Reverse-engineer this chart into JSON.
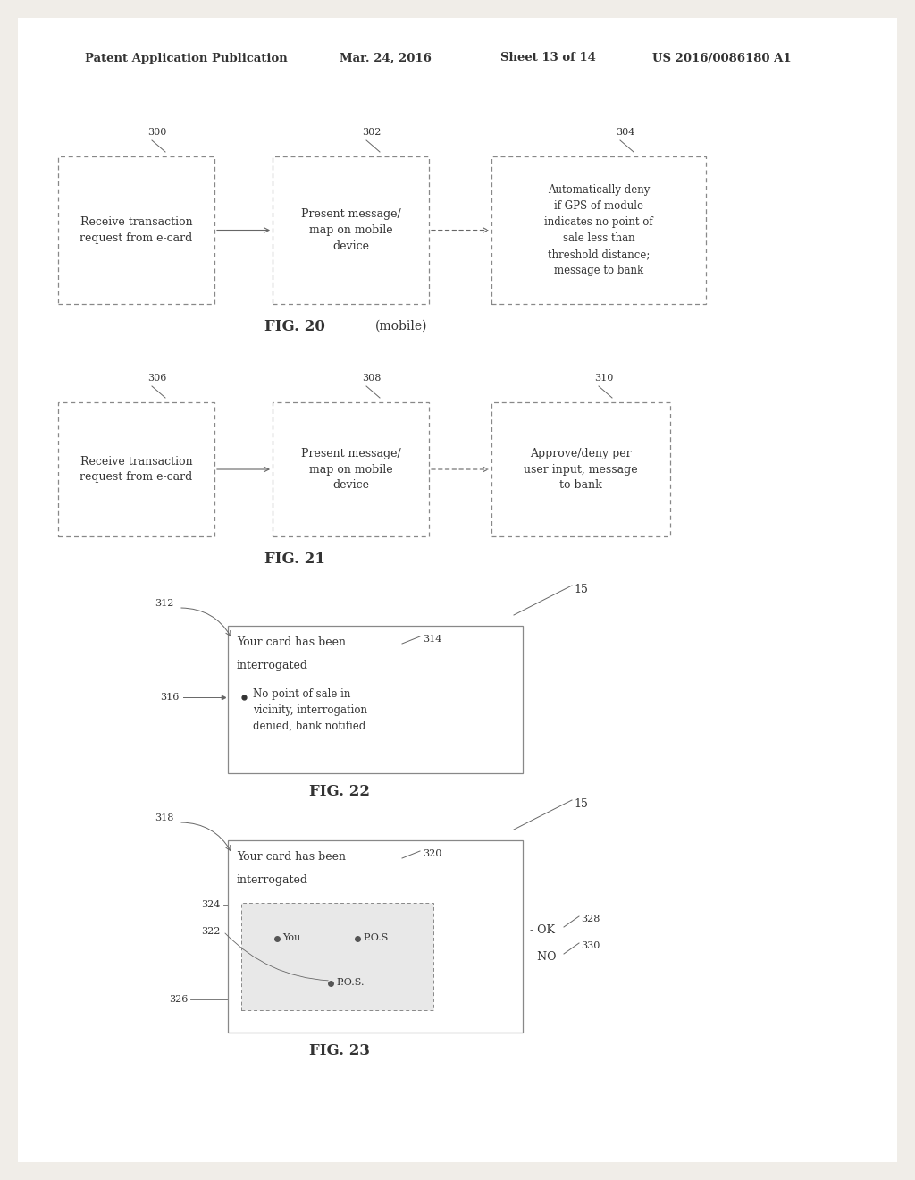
{
  "bg_color": "#f0ede8",
  "page_bg": "#f0ede8",
  "header_text": "Patent Application Publication",
  "header_date": "Mar. 24, 2016",
  "header_sheet": "Sheet 13 of 14",
  "header_patent": "US 2016/0086180 A1",
  "fig20_label": "FIG. 20",
  "fig20_sublabel": "(mobile)",
  "fig21_label": "FIG. 21",
  "fig22_label": "FIG. 22",
  "fig23_label": "FIG. 23",
  "box_edge": "#888888",
  "text_color": "#333333",
  "arrow_color": "#666666",
  "white": "#ffffff",
  "light_gray": "#e8e8e8"
}
